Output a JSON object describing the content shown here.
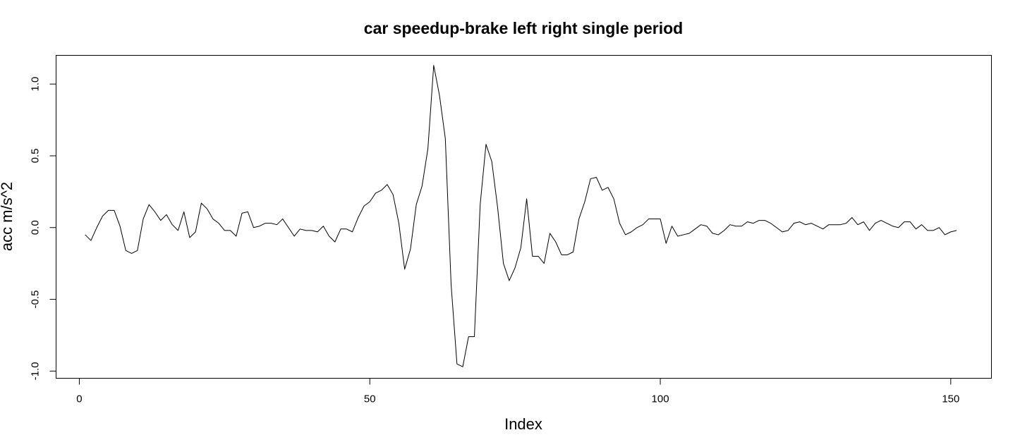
{
  "chart_data": {
    "type": "line",
    "title": "car speedup-brake left right single period",
    "xlabel": "Index",
    "ylabel": "acc m/s^2",
    "xlim": [
      -4,
      157
    ],
    "ylim": [
      -1.05,
      1.2
    ],
    "x_ticks": [
      {
        "value": 0,
        "label": "0"
      },
      {
        "value": 50,
        "label": "50"
      },
      {
        "value": 100,
        "label": "100"
      },
      {
        "value": 150,
        "label": "150"
      }
    ],
    "y_ticks": [
      {
        "value": -1.0,
        "label": "-1.0"
      },
      {
        "value": -0.5,
        "label": "-0.5"
      },
      {
        "value": 0.0,
        "label": "0.0"
      },
      {
        "value": 0.5,
        "label": "0.5"
      },
      {
        "value": 1.0,
        "label": "1.0"
      }
    ],
    "grid": false,
    "legend": "none",
    "line_color": "#000000",
    "x": [
      1,
      2,
      3,
      4,
      5,
      6,
      7,
      8,
      9,
      10,
      11,
      12,
      13,
      14,
      15,
      16,
      17,
      18,
      19,
      20,
      21,
      22,
      23,
      24,
      25,
      26,
      27,
      28,
      29,
      30,
      31,
      32,
      33,
      34,
      35,
      36,
      37,
      38,
      39,
      40,
      41,
      42,
      43,
      44,
      45,
      46,
      47,
      48,
      49,
      50,
      51,
      52,
      53,
      54,
      55,
      56,
      57,
      58,
      59,
      60,
      61,
      62,
      63,
      64,
      65,
      66,
      67,
      68,
      69,
      70,
      71,
      72,
      73,
      74,
      75,
      76,
      77,
      78,
      79,
      80,
      81,
      82,
      83,
      84,
      85,
      86,
      87,
      88,
      89,
      90,
      91,
      92,
      93,
      94,
      95,
      96,
      97,
      98,
      99,
      100,
      101,
      102,
      103,
      104,
      105,
      106,
      107,
      108,
      109,
      110,
      111,
      112,
      113,
      114,
      115,
      116,
      117,
      118,
      119,
      120,
      121,
      122,
      123,
      124,
      125,
      126,
      127,
      128,
      129,
      130,
      131,
      132,
      133,
      134,
      135,
      136,
      137,
      138,
      139,
      140,
      141,
      142,
      143,
      144,
      145,
      146,
      147,
      148,
      149,
      150,
      151
    ],
    "values": [
      -0.05,
      -0.09,
      0.0,
      0.08,
      0.12,
      0.12,
      0.01,
      -0.16,
      -0.18,
      -0.16,
      0.06,
      0.16,
      0.11,
      0.05,
      0.09,
      0.02,
      -0.02,
      0.11,
      -0.07,
      -0.03,
      0.17,
      0.13,
      0.06,
      0.03,
      -0.02,
      -0.02,
      -0.06,
      0.1,
      0.11,
      0.0,
      0.01,
      0.03,
      0.03,
      0.02,
      0.06,
      0.0,
      -0.06,
      -0.01,
      -0.02,
      -0.02,
      -0.03,
      0.01,
      -0.06,
      -0.1,
      -0.01,
      -0.01,
      -0.03,
      0.07,
      0.15,
      0.18,
      0.24,
      0.26,
      0.3,
      0.23,
      0.03,
      -0.29,
      -0.15,
      0.16,
      0.29,
      0.55,
      1.13,
      0.92,
      0.62,
      -0.4,
      -0.95,
      -0.97,
      -0.76,
      -0.76,
      0.16,
      0.58,
      0.46,
      0.14,
      -0.25,
      -0.37,
      -0.28,
      -0.14,
      0.2,
      -0.2,
      -0.2,
      -0.25,
      -0.04,
      -0.1,
      -0.19,
      -0.19,
      -0.17,
      0.06,
      0.18,
      0.34,
      0.35,
      0.26,
      0.28,
      0.2,
      0.03,
      -0.05,
      -0.03,
      0.0,
      0.02,
      0.06,
      0.06,
      0.06,
      -0.11,
      0.01,
      -0.06,
      -0.05,
      -0.04,
      -0.01,
      0.02,
      0.01,
      -0.04,
      -0.05,
      -0.02,
      0.02,
      0.01,
      0.01,
      0.04,
      0.03,
      0.05,
      0.05,
      0.03,
      0.0,
      -0.03,
      -0.02,
      0.03,
      0.04,
      0.02,
      0.03,
      0.01,
      -0.01,
      0.02,
      0.02,
      0.02,
      0.03,
      0.07,
      0.02,
      0.04,
      -0.02,
      0.03,
      0.05,
      0.03,
      0.01,
      0.0,
      0.04,
      0.04,
      -0.01,
      0.02,
      -0.02,
      -0.02,
      0.0,
      -0.05,
      -0.03,
      -0.02
    ]
  }
}
